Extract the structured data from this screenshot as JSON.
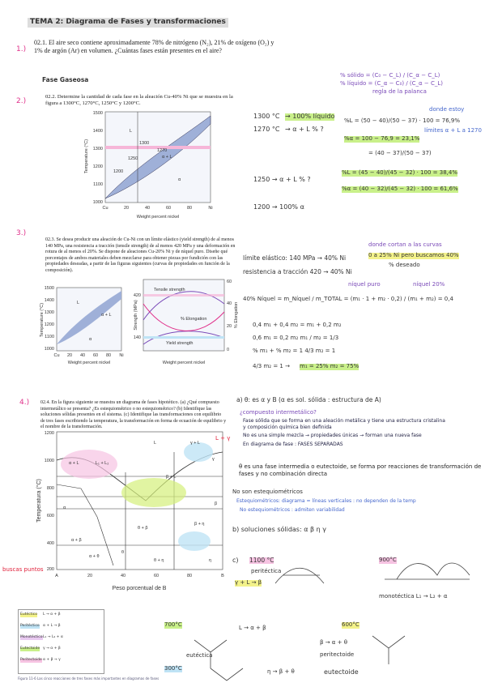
{
  "title": "TEMA 2: Diagrama de Fases y transformaciones",
  "problems": [
    {
      "number": "1.)",
      "statement": "02.1. El aire seco contiene aproximadamente 78% de nitrógeno (N₂), 21% de oxígeno (O₂) y 1% de argón (Ar) en volumen. ¿Cuántas fases están presentes en el aire?"
    },
    {
      "number": "2.)",
      "statement": "02.2. Determine la cantidad de cada fase en la aleación Cu-40% Ni que se muestra en la figura a 1300°C, 1270°C, 1250°C y 1200°C."
    },
    {
      "number": "3.)",
      "statement": "02.3. Se desea producir una aleación de Cu-Ni con un límite elástico (yield strength) de al menos 140 MPa, una resistencia a tracción (tensile strength) de al menos 420 MPa y una deformación en rotura de al menos el 20%. Se dispone de aleaciones Cu-20% Ni y de níquel puro. Diseñe qué porcentajes de ambos materiales deben mezclarse para obtener piezas por fundición con las propiedades deseadas, a partir de las figuras siguientes (curvas de propiedades en función de la composición)."
    },
    {
      "number": "4.)",
      "statement": "02.4. En la figura siguiente se muestra un diagrama de fases hipotético. (a) ¿Qué compuesto intermetálico se presenta? ¿Es estequiométrico o no estequiométrico? (b) Identifique las soluciones sólidas presentes en el sistema. (c) Identifique las transformaciones con equilibrio de tres fases escribiendo la temperatura, la transformación en forma de ecuación de equilibrio y el nombre de la transformación."
    }
  ],
  "q1_answer": "Fase Gaseosa",
  "lever": {
    "solid": "% sólido = (C₀ − C_L) / (C_α − C_L)",
    "liquid": "% líquido = (C_α − C₀) / (C_α − C_L)",
    "caption": "regla de la palanca"
  },
  "q2_notes": [
    "1300 °C",
    "→ 100% líquido",
    "1270 °C",
    "→ α + L   % ?",
    "%L = (50 − 40)/(50 − 37) · 100 = 76,9%",
    "donde estoy",
    "%α = 100 − 76,9 = 23,1%",
    "límites α + L a 1270",
    "= (40 − 37)/(50 − 37)",
    "1250 → α + L   % ?",
    "%L = (45 − 40)/(45 − 32) · 100 = 38,4%",
    "%α = (40 − 32)/(45 − 32) · 100 = 61,6%",
    "1200 → 100% α"
  ],
  "fig2": {
    "ylabel": "Temperature (°C)",
    "xlabel": "Weight percent nickel",
    "yticks": [
      "1500",
      "1400",
      "1300",
      "1200",
      "1100",
      "1000"
    ],
    "xticks": [
      "Cu",
      "20",
      "40",
      "60",
      "80",
      "Ni"
    ],
    "regions": [
      "L",
      "α + L",
      "α"
    ],
    "temps": [
      "1300",
      "1270",
      "1250",
      "1200"
    ]
  },
  "q3_notes": [
    "donde cortan a las curvas",
    "límite elástico: 140 MPa → 40% Ni",
    "0 a 25% Ni pero buscamos 40%",
    "% deseado",
    "resistencia a tracción 420 → 40% Ni",
    "níquel puro",
    "níquel 20%",
    "40% Níquel = m_Níquel / m_TOTAL = (m₁ · 1 + m₂ · 0,2) / (m₁ + m₂) = 0,4",
    "0,4 m₁ + 0,4 m₂ = m₁ + 0,2 m₂",
    "0,6 m₁ = 0,2 m₂      m₁ / m₂ = 1/3",
    "% m₁ + % m₂ = 1      4/3 m₂ = 1",
    "4/3 m₂ = 1 →",
    "m₁ = 25%   m₂ = 75%"
  ],
  "fig3": {
    "left_ylabel": "Temperature (°C)",
    "xlabel": "Weight percent nickel",
    "left_yticks": [
      "1500",
      "1400",
      "1300",
      "1200",
      "1100",
      "1000"
    ],
    "xticks": [
      "Cu",
      "20",
      "40",
      "60",
      "80",
      "Ni"
    ],
    "regions": [
      "L",
      "α + L",
      "α"
    ],
    "right_ylabel": "Strength (MPa)",
    "right_y2label": "% Elongation",
    "curves": [
      "Tensile strength",
      "Yield strength",
      "% Elongation"
    ],
    "marks": [
      "420",
      "140"
    ],
    "y2ticks": [
      "60",
      "40",
      "20",
      "0"
    ]
  },
  "q4_notes": [
    "a) θ: es α y B   (α es sol. sólida : estructura de A)",
    "¿compuesto intermetálico?",
    "Fase sólida que se forma en una aleación metálica y tiene una estructura cristalina y composición química bien definida",
    "No es una simple mezcla → propiedades únicas → forman una nueva fase",
    "En diagrama de fase : FASES SEPARADAS",
    "θ es una fase intermedia o eutectoide, se forma por reacciones de transformación de fases y no combinación directa",
    "No son estequiométricos",
    "Estequiométricos: diagrama = líneas verticales : no dependen de la temp",
    "No estequiométricos : admiten variabilidad",
    "b) soluciones sólidas: α β η γ",
    "c)",
    "1100 °C",
    "peritéctica",
    "γ + L → β",
    "900°C",
    "monotéctica   L₁ → L₂ + α",
    "700°C",
    "eutéctica",
    "L → α + β",
    "600°C",
    "β → α + θ",
    "peritectoide",
    "300°C",
    "η → β + θ",
    "eutectoide",
    "buscas puntos",
    "L + γ"
  ],
  "fig4": {
    "ylabel": "Temperatura (°C)",
    "xlabel": "Peso porcentual de B",
    "yticks": [
      "1200",
      "1000",
      "800",
      "600",
      "400",
      "200"
    ],
    "xticks": [
      "A",
      "20",
      "40",
      "60",
      "80",
      "B"
    ],
    "regions": [
      "L",
      "α + L",
      "L₁ + L₂",
      "γ + L",
      "γ",
      "β + L",
      "α",
      "α + β",
      "θ + β",
      "θ",
      "α + θ",
      "θ + η",
      "β + η",
      "η",
      "β"
    ]
  },
  "table": {
    "rows": [
      "Eutéctico",
      "Peritéctico",
      "Monotéctico",
      "Eutectoide",
      "Peritectoide"
    ],
    "eqs": [
      "L → α + β",
      "α + L → β",
      "L₁ → L₂ + α",
      "γ → α + β",
      "α + β → γ"
    ],
    "caption": "Figura 11-6   Las cinco reacciones de tres fases más importantes en diagramas de fases"
  }
}
